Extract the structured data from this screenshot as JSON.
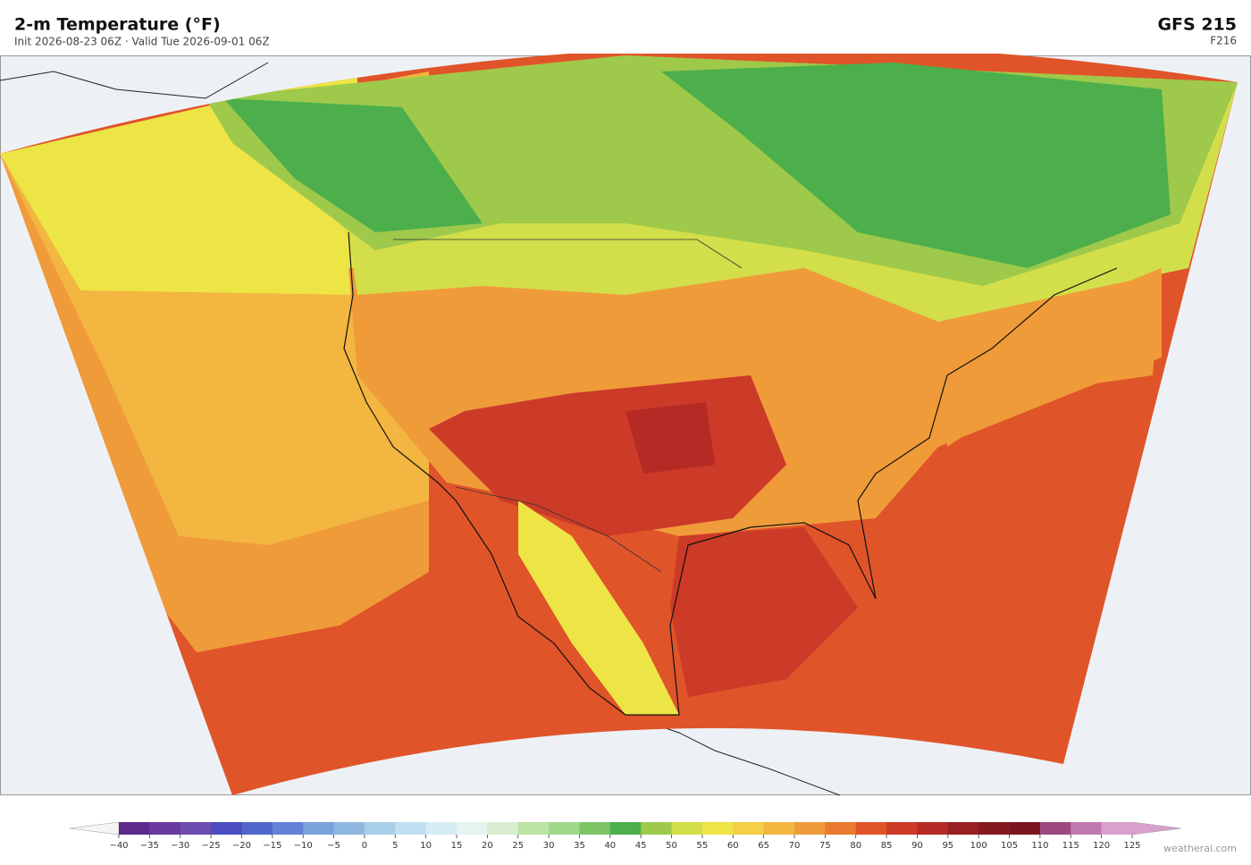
{
  "header": {
    "title": "2-m Temperature  (°F)",
    "subtitle": "Init 2026-08-23 06Z  ·  Valid Tue 2026-09-01 06Z",
    "model": "GFS  215",
    "forecast_hour": "F216"
  },
  "colorbar": {
    "ticks": [
      {
        "value": -40,
        "label": "−40"
      },
      {
        "value": -35,
        "label": "−35"
      },
      {
        "value": -30,
        "label": "−30"
      },
      {
        "value": -25,
        "label": "−25"
      },
      {
        "value": -20,
        "label": "−20"
      },
      {
        "value": -15,
        "label": "−15"
      },
      {
        "value": -10,
        "label": "−10"
      },
      {
        "value": -5,
        "label": "−5"
      },
      0,
      5,
      10,
      15,
      20,
      25,
      30,
      35,
      40,
      45,
      50,
      55,
      60,
      65,
      70,
      75,
      80,
      85,
      90,
      95,
      100,
      105,
      110,
      115,
      120,
      125
    ],
    "colors": [
      "#5b2a8c",
      "#6a3a9e",
      "#6e4db0",
      "#4a4cbf",
      "#4f66cc",
      "#6283d6",
      "#7aa1dc",
      "#8fb8e0",
      "#a8cfe8",
      "#bfe0f0",
      "#d4ecf2",
      "#e6f4f0",
      "#d8ecd0",
      "#bde3a5",
      "#a0d88a",
      "#7cc466",
      "#4caf4c",
      "#9ec94a",
      "#d2de4a",
      "#ede445",
      "#f4cf47",
      "#f3b640",
      "#f09b3a",
      "#ea7a30",
      "#e0542a",
      "#cc3a28",
      "#b52a24",
      "#9a1f22",
      "#851a1e",
      "#7a1620",
      "#9c4a7e",
      "#c07ab0",
      "#d9a0cc"
    ],
    "under_color": "#f5f5f5",
    "over_color": "#d9a0cc"
  },
  "footer": {
    "credit": "weatherai.com"
  }
}
